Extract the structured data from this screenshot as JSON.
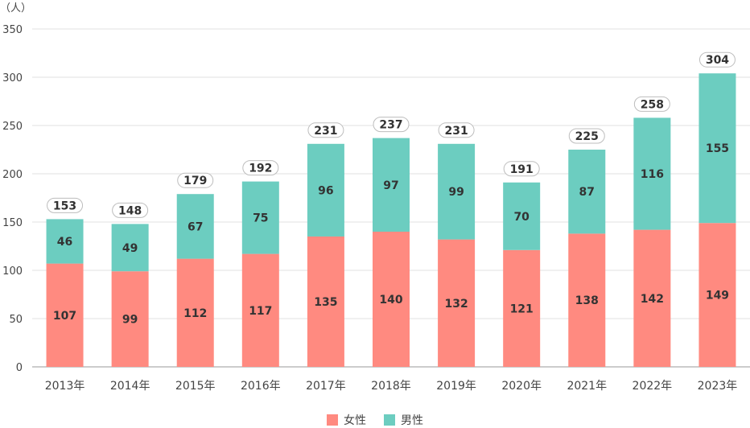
{
  "chart_data": {
    "type": "bar",
    "stacked": true,
    "unit_label": "（人）",
    "categories": [
      "2013年",
      "2014年",
      "2015年",
      "2016年",
      "2017年",
      "2018年",
      "2019年",
      "2020年",
      "2021年",
      "2022年",
      "2023年"
    ],
    "series": [
      {
        "name": "女性",
        "color": "#ff8a80",
        "values": [
          107,
          99,
          112,
          117,
          135,
          140,
          132,
          121,
          138,
          142,
          149
        ]
      },
      {
        "name": "男性",
        "color": "#6ccdc0",
        "values": [
          46,
          49,
          67,
          75,
          96,
          97,
          99,
          70,
          87,
          116,
          155
        ]
      }
    ],
    "totals": [
      153,
      148,
      179,
      192,
      231,
      237,
      231,
      191,
      225,
      258,
      304
    ],
    "ylim": [
      0,
      350
    ],
    "yticks": [
      0,
      50,
      100,
      150,
      200,
      250,
      300,
      350
    ],
    "grid": true,
    "legend_position": "bottom-center"
  }
}
